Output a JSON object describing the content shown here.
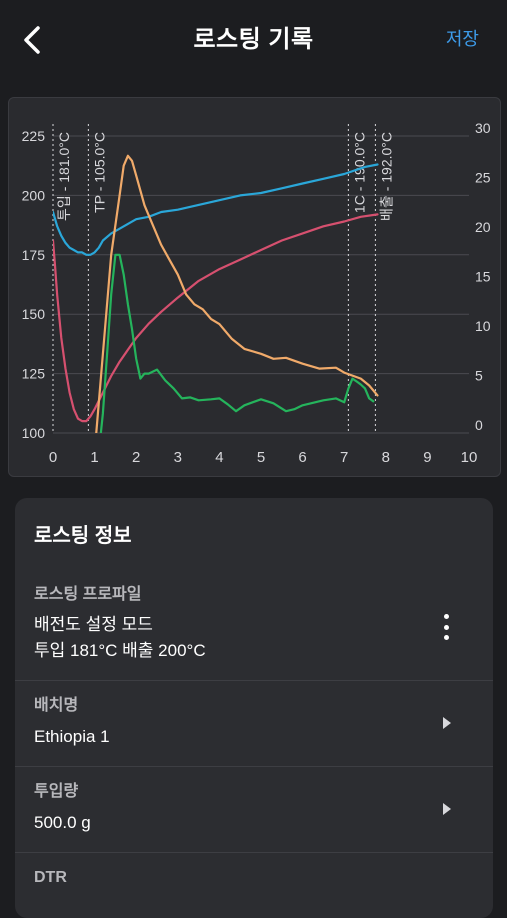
{
  "header": {
    "title": "로스팅 기록",
    "save_label": "저장",
    "back_icon": "chevron-left-icon"
  },
  "chart_data": {
    "type": "line",
    "xlim": [
      0,
      10
    ],
    "x_ticks": [
      "0",
      "1",
      "2",
      "3",
      "4",
      "5",
      "6",
      "7",
      "8",
      "9",
      "10"
    ],
    "ylim_left": [
      100,
      225
    ],
    "y_ticks_left": [
      "100",
      "125",
      "150",
      "175",
      "200",
      "225"
    ],
    "ylim_right": [
      0,
      30
    ],
    "y_ticks_right": [
      "0",
      "5",
      "10",
      "15",
      "20",
      "25",
      "30"
    ],
    "grid": true,
    "annotations": [
      {
        "x": 0.0,
        "label": "투입 - 181.0°C"
      },
      {
        "x": 0.85,
        "label": "TP - 105.0°C"
      },
      {
        "x": 7.1,
        "label": "1C - 190.0°C"
      },
      {
        "x": 7.75,
        "label": "배출 - 192.0°C"
      }
    ],
    "series": [
      {
        "axis": "left",
        "color": "#2aa7d9",
        "x": [
          0,
          0.1,
          0.2,
          0.3,
          0.4,
          0.5,
          0.6,
          0.7,
          0.8,
          0.9,
          1.0,
          1.1,
          1.2,
          1.4,
          1.6,
          1.8,
          2.0,
          2.3,
          2.6,
          3.0,
          3.5,
          4.0,
          4.5,
          5.0,
          5.5,
          6.0,
          6.5,
          7.0,
          7.5,
          7.8
        ],
        "y": [
          193,
          187,
          183,
          180,
          178,
          177,
          176,
          176,
          175,
          175,
          176,
          178,
          181,
          184,
          186,
          188,
          190,
          191,
          193,
          194,
          196,
          198,
          200,
          201,
          203,
          205,
          207,
          209,
          212,
          213
        ]
      },
      {
        "axis": "left",
        "color": "#d6506f",
        "x": [
          0,
          0.05,
          0.1,
          0.2,
          0.3,
          0.4,
          0.5,
          0.6,
          0.7,
          0.8,
          0.9,
          1.0,
          1.2,
          1.4,
          1.6,
          1.8,
          2.0,
          2.3,
          2.6,
          3.0,
          3.5,
          4.0,
          4.5,
          5.0,
          5.5,
          6.0,
          6.5,
          7.0,
          7.4,
          7.8
        ],
        "y": [
          181,
          170,
          158,
          140,
          127,
          117,
          110,
          106,
          105,
          105,
          107,
          110,
          117,
          124,
          130,
          135,
          140,
          146,
          151,
          157,
          164,
          169,
          173,
          177,
          181,
          184,
          187,
          189,
          191,
          192
        ]
      },
      {
        "axis": "right",
        "color": "#f0aa6a",
        "x": [
          1.0,
          1.2,
          1.4,
          1.6,
          1.7,
          1.8,
          1.9,
          2.0,
          2.2,
          2.4,
          2.6,
          2.8,
          3.0,
          3.2,
          3.4,
          3.6,
          3.8,
          4.0,
          4.3,
          4.6,
          5.0,
          5.3,
          5.6,
          6.0,
          6.4,
          6.8,
          7.0,
          7.2,
          7.4,
          7.6,
          7.8
        ],
        "y": [
          -2,
          8,
          18,
          24,
          27,
          28,
          27.5,
          26,
          23,
          21,
          19,
          17.5,
          16,
          14,
          13,
          12.5,
          11.5,
          11,
          9.5,
          8.5,
          8,
          7.5,
          7.6,
          7,
          6.5,
          6.6,
          6.1,
          5.8,
          5.5,
          4.8,
          3.8
        ]
      },
      {
        "axis": "right",
        "color": "#25b45c",
        "x": [
          1.1,
          1.2,
          1.3,
          1.4,
          1.5,
          1.6,
          1.7,
          1.8,
          1.9,
          2.0,
          2.1,
          2.2,
          2.3,
          2.5,
          2.7,
          2.9,
          3.1,
          3.3,
          3.5,
          3.8,
          4.0,
          4.2,
          4.4,
          4.6,
          5.0,
          5.3,
          5.6,
          5.8,
          6.0,
          6.3,
          6.5,
          6.8,
          7.0,
          7.1,
          7.2,
          7.3,
          7.4,
          7.5,
          7.6,
          7.7
        ],
        "y": [
          -2,
          2,
          8,
          14,
          18,
          18,
          16,
          13,
          10.5,
          7.5,
          5.5,
          6,
          6,
          6.4,
          5.3,
          4.5,
          3.5,
          3.6,
          3.3,
          3.4,
          3.5,
          2.9,
          2.2,
          2.8,
          3.4,
          3,
          2.2,
          2.4,
          2.8,
          3.1,
          3.3,
          3.5,
          3.1,
          4.5,
          5.5,
          5.2,
          4.9,
          4.5,
          3.5,
          3.2
        ]
      }
    ]
  },
  "info": {
    "title": "로스팅 정보",
    "profile": {
      "label": "로스팅 프로파일",
      "value_line1": "배전도 설정 모드",
      "value_line2": "투입 181°C  배출 200°C",
      "menu_icon": "more-vertical-icon"
    },
    "batch": {
      "label": "배치명",
      "value": "Ethiopia 1",
      "chevron_icon": "chevron-right-icon"
    },
    "amount": {
      "label": "투입량",
      "value": "500.0 g",
      "chevron_icon": "chevron-right-icon"
    },
    "dtr": {
      "label": "DTR"
    }
  }
}
